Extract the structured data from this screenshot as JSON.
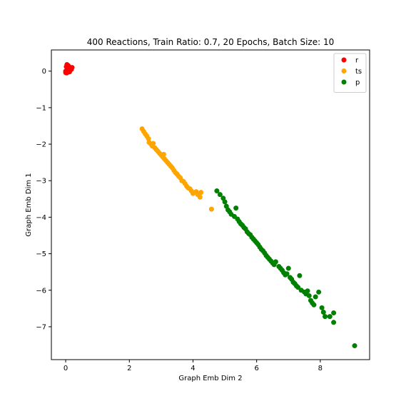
{
  "chart_data": {
    "type": "scatter",
    "title": "400 Reactions, Train Ratio: 0.7, 20 Epochs, Batch Size: 10",
    "xlabel": "Graph Emb Dim 2",
    "ylabel": "Graph Emb Dim 1",
    "xlim": [
      -0.45,
      9.55
    ],
    "ylim": [
      -7.9,
      0.58
    ],
    "xticks": [
      0,
      2,
      4,
      6,
      8
    ],
    "yticks": [
      0,
      -1,
      -2,
      -3,
      -4,
      -5,
      -6,
      -7
    ],
    "legend_position": "top-right",
    "grid": false,
    "series": [
      {
        "name": "r",
        "color": "#ff0000",
        "points": [
          [
            0.0,
            0.0
          ],
          [
            0.05,
            0.1
          ],
          [
            0.1,
            0.05
          ],
          [
            0.03,
            -0.05
          ],
          [
            0.08,
            0.15
          ],
          [
            0.12,
            -0.02
          ],
          [
            0.15,
            0.08
          ],
          [
            0.02,
            0.12
          ],
          [
            0.06,
            -0.03
          ],
          [
            0.18,
            0.05
          ],
          [
            0.04,
            0.18
          ],
          [
            0.1,
            0.12
          ],
          [
            0.0,
            -0.04
          ],
          [
            0.14,
            0.1
          ],
          [
            0.07,
            0.02
          ],
          [
            0.2,
            0.1
          ]
        ]
      },
      {
        "name": "ts",
        "color": "#ffa500",
        "points": [
          [
            2.4,
            -1.58
          ],
          [
            2.45,
            -1.65
          ],
          [
            2.5,
            -1.72
          ],
          [
            2.55,
            -1.78
          ],
          [
            2.6,
            -1.85
          ],
          [
            2.62,
            -1.95
          ],
          [
            2.68,
            -2.0
          ],
          [
            2.72,
            -2.05
          ],
          [
            2.75,
            -1.98
          ],
          [
            2.8,
            -2.1
          ],
          [
            2.85,
            -2.15
          ],
          [
            2.9,
            -2.2
          ],
          [
            2.95,
            -2.25
          ],
          [
            3.0,
            -2.3
          ],
          [
            3.05,
            -2.35
          ],
          [
            3.08,
            -2.28
          ],
          [
            3.1,
            -2.4
          ],
          [
            3.15,
            -2.45
          ],
          [
            3.2,
            -2.5
          ],
          [
            3.25,
            -2.55
          ],
          [
            3.3,
            -2.6
          ],
          [
            3.35,
            -2.65
          ],
          [
            3.4,
            -2.72
          ],
          [
            3.45,
            -2.78
          ],
          [
            3.5,
            -2.82
          ],
          [
            3.55,
            -2.88
          ],
          [
            3.6,
            -2.92
          ],
          [
            3.65,
            -3.0
          ],
          [
            3.7,
            -3.02
          ],
          [
            3.75,
            -3.08
          ],
          [
            3.8,
            -3.15
          ],
          [
            3.85,
            -3.2
          ],
          [
            3.9,
            -3.22
          ],
          [
            3.95,
            -3.28
          ],
          [
            4.0,
            -3.35
          ],
          [
            4.1,
            -3.3
          ],
          [
            4.25,
            -3.32
          ],
          [
            4.15,
            -3.38
          ],
          [
            4.22,
            -3.45
          ],
          [
            4.58,
            -3.78
          ]
        ]
      },
      {
        "name": "p",
        "color": "#008000",
        "points": [
          [
            4.75,
            -3.28
          ],
          [
            4.85,
            -3.38
          ],
          [
            4.95,
            -3.48
          ],
          [
            5.0,
            -3.58
          ],
          [
            5.05,
            -3.7
          ],
          [
            5.1,
            -3.8
          ],
          [
            5.15,
            -3.85
          ],
          [
            5.2,
            -3.92
          ],
          [
            5.3,
            -3.98
          ],
          [
            5.35,
            -3.75
          ],
          [
            5.4,
            -4.05
          ],
          [
            5.45,
            -4.12
          ],
          [
            5.5,
            -4.18
          ],
          [
            5.55,
            -4.22
          ],
          [
            5.6,
            -4.28
          ],
          [
            5.65,
            -4.32
          ],
          [
            5.7,
            -4.4
          ],
          [
            5.75,
            -4.45
          ],
          [
            5.8,
            -4.48
          ],
          [
            5.85,
            -4.55
          ],
          [
            5.9,
            -4.6
          ],
          [
            5.95,
            -4.65
          ],
          [
            6.0,
            -4.7
          ],
          [
            6.05,
            -4.75
          ],
          [
            6.1,
            -4.82
          ],
          [
            6.15,
            -4.88
          ],
          [
            6.2,
            -4.92
          ],
          [
            6.25,
            -4.98
          ],
          [
            6.3,
            -5.05
          ],
          [
            6.35,
            -5.1
          ],
          [
            6.4,
            -5.15
          ],
          [
            6.45,
            -5.2
          ],
          [
            6.5,
            -5.25
          ],
          [
            6.55,
            -5.3
          ],
          [
            6.6,
            -5.22
          ],
          [
            6.7,
            -5.35
          ],
          [
            6.75,
            -5.4
          ],
          [
            6.8,
            -5.45
          ],
          [
            6.85,
            -5.52
          ],
          [
            6.9,
            -5.58
          ],
          [
            6.95,
            -5.55
          ],
          [
            7.0,
            -5.4
          ],
          [
            7.05,
            -5.65
          ],
          [
            7.1,
            -5.7
          ],
          [
            7.15,
            -5.78
          ],
          [
            7.2,
            -5.82
          ],
          [
            7.25,
            -5.88
          ],
          [
            7.3,
            -5.92
          ],
          [
            7.35,
            -5.6
          ],
          [
            7.4,
            -6.0
          ],
          [
            7.5,
            -6.05
          ],
          [
            7.6,
            -6.02
          ],
          [
            7.55,
            -6.1
          ],
          [
            7.65,
            -6.15
          ],
          [
            7.7,
            -6.28
          ],
          [
            7.75,
            -6.35
          ],
          [
            7.8,
            -6.4
          ],
          [
            7.85,
            -6.18
          ],
          [
            7.95,
            -6.05
          ],
          [
            8.05,
            -6.48
          ],
          [
            8.1,
            -6.6
          ],
          [
            8.15,
            -6.72
          ],
          [
            8.3,
            -6.72
          ],
          [
            8.42,
            -6.62
          ],
          [
            8.42,
            -6.88
          ],
          [
            9.08,
            -7.52
          ]
        ]
      }
    ]
  }
}
